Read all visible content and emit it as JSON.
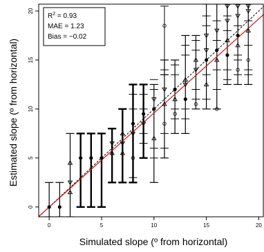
{
  "chart_data": {
    "type": "scatter",
    "xlabel": "Simulated slope (º from horizontal)",
    "ylabel": "Estimated slope (º from horizontal)",
    "xlim": [
      -1,
      20.5
    ],
    "ylim": [
      -1,
      20.7
    ],
    "xticks": [
      0,
      5,
      10,
      15,
      20
    ],
    "yticks": [
      0,
      5,
      10,
      15,
      20
    ],
    "grid": false,
    "stats": {
      "r2_label": "R",
      "r2_sup": "2",
      "r2_value": " = 0.93",
      "mae": "MAE = 1.23",
      "bias": "Bias = −0.02"
    },
    "errorbars": [
      {
        "x": 0,
        "mean": 0,
        "low": -1.0,
        "high": 2.5
      },
      {
        "x": 1,
        "mean": 0,
        "low": -1.0,
        "high": 2.5
      },
      {
        "x": 2,
        "mean": 2.5,
        "low": -1.0,
        "high": 7.5
      },
      {
        "x": 3,
        "mean": 5,
        "low": 0,
        "high": 7.5
      },
      {
        "x": 4,
        "mean": 5,
        "low": 0,
        "high": 7.5
      },
      {
        "x": 5,
        "mean": 5,
        "low": 0,
        "high": 7.5
      },
      {
        "x": 6,
        "mean": 5.5,
        "low": 2.5,
        "high": 8.0
      },
      {
        "x": 7,
        "mean": 7.5,
        "low": 2.5,
        "high": 10.0
      },
      {
        "x": 8,
        "mean": 8.5,
        "low": 2.5,
        "high": 12.5
      },
      {
        "x": 9,
        "mean": 9.5,
        "low": 5,
        "high": 12.5
      },
      {
        "x": 10,
        "mean": 10,
        "low": 2.5,
        "high": 12.5
      },
      {
        "x": 11,
        "mean": 10.5,
        "low": 5,
        "high": 15.0
      },
      {
        "x": 12,
        "mean": 12,
        "low": 7.5,
        "high": 15.0
      },
      {
        "x": 13,
        "mean": 13,
        "low": 7.5,
        "high": 17.5
      },
      {
        "x": 14,
        "mean": 14,
        "low": 10,
        "high": 17.5
      },
      {
        "x": 15,
        "mean": 15,
        "low": 10,
        "high": 20.7
      },
      {
        "x": 16,
        "mean": 16,
        "low": 10,
        "high": 20.7
      },
      {
        "x": 17,
        "mean": 17,
        "low": 12.5,
        "high": 20.7
      },
      {
        "x": 18,
        "mean": 17.5,
        "low": 12.5,
        "high": 20.7
      },
      {
        "x": 19,
        "mean": 18,
        "low": 12.5,
        "high": 20.7
      }
    ],
    "outlier_bar": {
      "x": 11,
      "point": 18.5,
      "low": 13.5,
      "high": 20.5
    },
    "markers": [
      {
        "x": 0,
        "y": 0,
        "shape": "dot"
      },
      {
        "x": 1,
        "y": 0,
        "shape": "dot"
      },
      {
        "x": 2,
        "y": 2.5,
        "shape": "tri-down"
      },
      {
        "x": 2,
        "y": 4.5,
        "shape": "tri-up"
      },
      {
        "x": 2,
        "y": 1.5,
        "shape": "tri-up"
      },
      {
        "x": 3,
        "y": 5,
        "shape": "dot"
      },
      {
        "x": 4,
        "y": 5,
        "shape": "dot"
      },
      {
        "x": 5,
        "y": 5,
        "shape": "dot"
      },
      {
        "x": 6,
        "y": 5.5,
        "shape": "tri-up"
      },
      {
        "x": 6,
        "y": 6.5,
        "shape": "tri-down"
      },
      {
        "x": 7,
        "y": 7.5,
        "shape": "tri-up"
      },
      {
        "x": 7,
        "y": 6.5,
        "shape": "tri-down"
      },
      {
        "x": 7,
        "y": 5.5,
        "shape": "tri-up"
      },
      {
        "x": 8,
        "y": 8.5,
        "shape": "dot"
      },
      {
        "x": 8,
        "y": 7.5,
        "shape": "tri-down"
      },
      {
        "x": 8,
        "y": 5,
        "shape": "circle"
      },
      {
        "x": 9,
        "y": 9.5,
        "shape": "dot"
      },
      {
        "x": 9,
        "y": 8.5,
        "shape": "tri-down"
      },
      {
        "x": 10,
        "y": 10,
        "shape": "dot"
      },
      {
        "x": 10,
        "y": 11,
        "shape": "tri-down"
      },
      {
        "x": 10,
        "y": 7.0,
        "shape": "tri-up"
      },
      {
        "x": 11,
        "y": 10.5,
        "shape": "tri-up"
      },
      {
        "x": 11,
        "y": 12,
        "shape": "tri-down"
      },
      {
        "x": 11,
        "y": 8.5,
        "shape": "circle"
      },
      {
        "x": 11,
        "y": 18.5,
        "shape": "circle"
      },
      {
        "x": 12,
        "y": 12,
        "shape": "dot"
      },
      {
        "x": 12,
        "y": 11,
        "shape": "tri-up"
      },
      {
        "x": 12,
        "y": 9.5,
        "shape": "circle"
      },
      {
        "x": 13,
        "y": 13,
        "shape": "tri-up"
      },
      {
        "x": 13,
        "y": 12.5,
        "shape": "tri-down"
      },
      {
        "x": 13,
        "y": 11,
        "shape": "dot"
      },
      {
        "x": 14,
        "y": 14,
        "shape": "tri-down"
      },
      {
        "x": 14,
        "y": 15,
        "shape": "tri-up"
      },
      {
        "x": 14,
        "y": 10.5,
        "shape": "circle"
      },
      {
        "x": 15,
        "y": 15,
        "shape": "dot"
      },
      {
        "x": 15,
        "y": 16,
        "shape": "tri-down"
      },
      {
        "x": 15,
        "y": 17.5,
        "shape": "tri-down"
      },
      {
        "x": 15,
        "y": 12.5,
        "shape": "tri-up"
      },
      {
        "x": 16,
        "y": 16,
        "shape": "dot"
      },
      {
        "x": 16,
        "y": 18,
        "shape": "tri-down"
      },
      {
        "x": 16,
        "y": 15,
        "shape": "tri-up"
      },
      {
        "x": 16,
        "y": 10,
        "shape": "circle"
      },
      {
        "x": 17,
        "y": 17,
        "shape": "tri-up"
      },
      {
        "x": 17,
        "y": 19,
        "shape": "tri-down"
      },
      {
        "x": 17,
        "y": 15.5,
        "shape": "dot"
      },
      {
        "x": 17,
        "y": 20.5,
        "shape": "tri-down"
      },
      {
        "x": 18,
        "y": 17.5,
        "shape": "dot"
      },
      {
        "x": 18,
        "y": 19.5,
        "shape": "tri-down"
      },
      {
        "x": 18,
        "y": 16.5,
        "shape": "tri-up"
      },
      {
        "x": 18,
        "y": 14,
        "shape": "circle"
      },
      {
        "x": 18,
        "y": 20.5,
        "shape": "tri-down"
      },
      {
        "x": 19,
        "y": 18,
        "shape": "tri-up"
      },
      {
        "x": 19,
        "y": 20,
        "shape": "tri-down"
      },
      {
        "x": 19,
        "y": 15,
        "shape": "circle"
      },
      {
        "x": 19,
        "y": 20.5,
        "shape": "tri-down"
      }
    ],
    "extra_caps": [
      {
        "x": 8,
        "ys": [
          10.0,
          11.5,
          12.5,
          3.0
        ]
      },
      {
        "x": 9,
        "ys": [
          10.0,
          11.5,
          6.5,
          7.5
        ]
      },
      {
        "x": 10,
        "ys": [
          13.0,
          12.0,
          5.0,
          6.0
        ]
      },
      {
        "x": 11,
        "ys": [
          13.5,
          14.0,
          7.5,
          6.0
        ]
      },
      {
        "x": 12,
        "ys": [
          13.5,
          14.5,
          9.0,
          10.0
        ]
      },
      {
        "x": 13,
        "ys": [
          15.5,
          16.5,
          10.0,
          9.0
        ]
      },
      {
        "x": 14,
        "ys": [
          16.0,
          17.0,
          12.0,
          11.0
        ]
      },
      {
        "x": 15,
        "ys": [
          18.5,
          19.5,
          11.0,
          13.5
        ]
      },
      {
        "x": 16,
        "ys": [
          19.0,
          17.0,
          12.0,
          14.0
        ]
      },
      {
        "x": 17,
        "ys": [
          18.0,
          19.5,
          14.0,
          13.0
        ]
      },
      {
        "x": 18,
        "ys": [
          18.5,
          15.5,
          13.5,
          15.0
        ]
      },
      {
        "x": 19,
        "ys": [
          19.0,
          16.5,
          14.0,
          13.5
        ]
      }
    ],
    "lines": {
      "identity": {
        "from": [
          -1,
          -1
        ],
        "to": [
          20.5,
          20.5
        ],
        "color": "#000000",
        "dash": "3,2"
      },
      "fit": {
        "from": [
          -1,
          -0.97
        ],
        "to": [
          20.5,
          19.67
        ],
        "color": "#d01010"
      }
    }
  }
}
